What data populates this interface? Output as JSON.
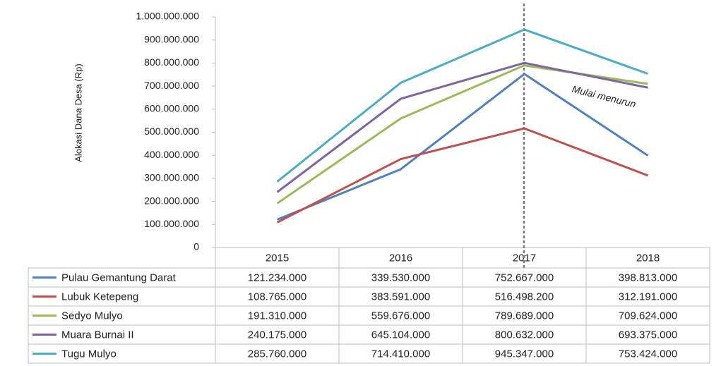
{
  "chart_data": {
    "type": "line",
    "y_label": "Alokasi Dana Desa (Rp)",
    "annotation": "Mulai menurun",
    "categories": [
      "2015",
      "2016",
      "2017",
      "2018"
    ],
    "ylim": [
      0,
      1000000000
    ],
    "yticks": [
      0,
      {
        "value": 100000000,
        "label": "100.000.000"
      },
      {
        "value": 200000000,
        "label": "200.000.000"
      },
      {
        "value": 300000000,
        "label": "300.000.000"
      },
      {
        "value": 400000000,
        "label": "400.000.000"
      },
      {
        "value": 500000000,
        "label": "500.000.000"
      },
      {
        "value": 600000000,
        "label": "600.000.000"
      },
      {
        "value": 700000000,
        "label": "700.000.000"
      },
      {
        "value": 800000000,
        "label": "800.000.000"
      },
      {
        "value": 900000000,
        "label": "900.000.000"
      },
      {
        "value": 1000000000,
        "label": "1.000.000.000"
      }
    ],
    "series": [
      {
        "name": "Pulau Gemantung Darat",
        "color": "#4f81bd",
        "values": [
          121234000,
          339530000,
          752667000,
          398813000
        ],
        "value_labels": [
          "121.234.000",
          "339.530.000",
          "752.667.000",
          "398.813.000"
        ]
      },
      {
        "name": "Lubuk Ketepeng",
        "color": "#c0504d",
        "values": [
          108765000,
          383591000,
          516498200,
          312191000
        ],
        "value_labels": [
          "108.765.000",
          "383.591.000",
          "516.498.200",
          "312.191.000"
        ]
      },
      {
        "name": "Sedyo Mulyo",
        "color": "#9bbb59",
        "values": [
          191310000,
          559676000,
          789689000,
          709624000
        ],
        "value_labels": [
          "191.310.000",
          "559.676.000",
          "789.689.000",
          "709.624.000"
        ]
      },
      {
        "name": "Muara Burnai II",
        "color": "#8064a2",
        "values": [
          240175000,
          645104000,
          800632000,
          693375000
        ],
        "value_labels": [
          "240.175.000",
          "645.104.000",
          "800.632.000",
          "693.375.000"
        ]
      },
      {
        "name": "Tugu Mulyo",
        "color": "#4bacc6",
        "values": [
          285760000,
          714410000,
          945347000,
          753424000
        ],
        "value_labels": [
          "285.760.000",
          "714.410.000",
          "945.347.000",
          "753.424.000"
        ]
      }
    ]
  }
}
